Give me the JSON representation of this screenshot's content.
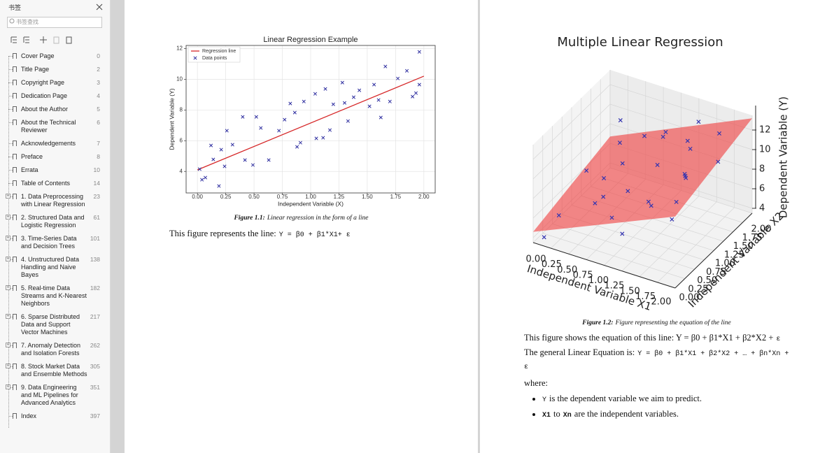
{
  "sidebar": {
    "title": "书签",
    "search_placeholder": "书签查找",
    "bookmarks": [
      {
        "label": "Cover Page",
        "page": 0
      },
      {
        "label": "Title Page",
        "page": 2
      },
      {
        "label": "Copyright Page",
        "page": 3
      },
      {
        "label": "Dedication Page",
        "page": 4
      },
      {
        "label": "About the Author",
        "page": 5
      },
      {
        "label": "About the Technical Reviewer",
        "page": 6
      },
      {
        "label": "Acknowledgements",
        "page": 7
      },
      {
        "label": "Preface",
        "page": 8
      },
      {
        "label": "Errata",
        "page": 10
      },
      {
        "label": "Table of Contents",
        "page": 14
      },
      {
        "label": "1. Data Preprocessing with Linear Regression",
        "page": 23,
        "has_children": true
      },
      {
        "label": "2. Structured Data and Logistic Regression",
        "page": 61,
        "has_children": true
      },
      {
        "label": "3. Time-Series Data and Decision Trees",
        "page": 101,
        "has_children": true
      },
      {
        "label": "4. Unstructured Data Handling and Naive Bayes",
        "page": 138,
        "has_children": true
      },
      {
        "label": "5. Real-time Data Streams and K-Nearest Neighbors",
        "page": 182,
        "has_children": true
      },
      {
        "label": "6. Sparse Distributed Data and Support Vector Machines",
        "page": 217,
        "has_children": true
      },
      {
        "label": "7. Anomaly Detection and Isolation Forests",
        "page": 262,
        "has_children": true
      },
      {
        "label": "8. Stock Market Data and Ensemble Methods",
        "page": 305,
        "has_children": true
      },
      {
        "label": "9. Data Engineering and ML Pipelines for Advanced Analytics",
        "page": 351,
        "has_children": true
      },
      {
        "label": "Index",
        "page": 397
      }
    ]
  },
  "pages": [
    {
      "caption": {
        "label": "Figure 1.1:",
        "text": "Linear regression in the form of a line"
      },
      "paragraphs": [
        {
          "text": "This figure represents the line:",
          "code": "Y = β0 + β1*X1+ ε"
        }
      ]
    },
    {
      "caption": {
        "label": "Figure 1.2:",
        "text": "Figure representing the equation of the line"
      },
      "paragraphs": [
        {
          "text": "This figure shows the equation of this line: Y = β0 + β1*X1 + β2*X2 +",
          "code": "ε"
        },
        {
          "text": "The general Linear Equation is:",
          "code": "Y = β0 + β1*X1 + β2*X2 + … + βn*Xn + ε"
        },
        {
          "text": "where:"
        }
      ],
      "bullets": [
        {
          "code": "Y",
          "text": "is the dependent variable we aim to predict."
        },
        {
          "code": "X1",
          "text": "to",
          "code2": "Xn",
          "text2": "are the independent variables."
        }
      ]
    }
  ],
  "chart_data": [
    {
      "type": "scatter",
      "title": "Linear Regression Example",
      "x_label": "Independent Variable (X)",
      "y_label": "Dependent Variable (Y)",
      "xlim": [
        -0.1,
        2.1
      ],
      "ylim": [
        2.6,
        12.2
      ],
      "xticks": [
        {
          "value": 0,
          "label": "0.00"
        },
        {
          "value": 0.25,
          "label": "0.25"
        },
        {
          "value": 0.5,
          "label": "0.50"
        },
        {
          "value": 0.75,
          "label": "0.75"
        },
        {
          "value": 1,
          "label": "1.00"
        },
        {
          "value": 1.25,
          "label": "1.25"
        },
        {
          "value": 1.5,
          "label": "1.50"
        },
        {
          "value": 1.75,
          "label": "1.75"
        },
        {
          "value": 2,
          "label": "2.00"
        }
      ],
      "yticks": [
        4,
        6,
        8,
        10,
        12
      ],
      "grid": true,
      "legend": "upper left",
      "series": [
        {
          "name": "Regression line",
          "kind": "line",
          "color": "#d62728",
          "x": [
            0,
            2
          ],
          "values": [
            4.1,
            10.2
          ]
        },
        {
          "name": "Data points",
          "kind": "points",
          "marker": "x",
          "color": "#2f2fa0",
          "x": [
            0.02,
            0.04,
            0.07,
            0.12,
            0.14,
            0.19,
            0.21,
            0.24,
            0.26,
            0.31,
            0.4,
            0.42,
            0.49,
            0.52,
            0.56,
            0.63,
            0.72,
            0.77,
            0.82,
            0.86,
            0.88,
            0.91,
            0.94,
            1.04,
            1.05,
            1.11,
            1.13,
            1.17,
            1.2,
            1.28,
            1.3,
            1.33,
            1.38,
            1.43,
            1.52,
            1.56,
            1.6,
            1.62,
            1.66,
            1.7,
            1.77,
            1.85,
            1.9,
            1.93,
            1.96,
            1.96
          ],
          "values": [
            4.15,
            3.46,
            3.6,
            5.69,
            4.78,
            3.05,
            5.42,
            4.33,
            6.65,
            5.74,
            7.55,
            4.74,
            4.42,
            7.55,
            6.83,
            4.74,
            6.65,
            7.37,
            8.42,
            7.83,
            5.6,
            5.87,
            8.55,
            9.05,
            6.15,
            6.19,
            9.37,
            6.69,
            8.37,
            9.78,
            8.46,
            7.28,
            8.83,
            9.28,
            8.24,
            9.65,
            8.65,
            7.51,
            10.83,
            8.55,
            10.05,
            10.55,
            8.87,
            9.1,
            11.78,
            9.65
          ]
        }
      ]
    },
    {
      "type": "scatter3d",
      "title": "Multiple Linear Regression",
      "x_label": "Independent Variable X1",
      "y_label": "Independent Variable X2",
      "z_label": "Dependent Variable (Y)",
      "xlim": [
        0,
        2
      ],
      "ylim": [
        0,
        2
      ],
      "zlim": [
        3.5,
        13.5
      ],
      "xticks": [
        {
          "value": 0,
          "label": "0.00"
        },
        {
          "value": 0.25,
          "label": "0.25"
        },
        {
          "value": 0.5,
          "label": "0.50"
        },
        {
          "value": 0.75,
          "label": "0.75"
        },
        {
          "value": 1,
          "label": "1.00"
        },
        {
          "value": 1.25,
          "label": "1.25"
        },
        {
          "value": 1.5,
          "label": "1.50"
        },
        {
          "value": 1.75,
          "label": "1.75"
        },
        {
          "value": 2,
          "label": "2.00"
        }
      ],
      "yticks": [
        {
          "value": 0,
          "label": "0.00"
        },
        {
          "value": 0.25,
          "label": "0.25"
        },
        {
          "value": 0.5,
          "label": "0.50"
        },
        {
          "value": 0.75,
          "label": "0.75"
        },
        {
          "value": 1,
          "label": "1.00"
        },
        {
          "value": 1.25,
          "label": "1.25"
        },
        {
          "value": 1.5,
          "label": "1.50"
        },
        {
          "value": 1.75,
          "label": "1.75"
        },
        {
          "value": 2,
          "label": "2.00"
        }
      ],
      "zticks": [
        4,
        6,
        8,
        10,
        12
      ],
      "grid": true,
      "surface": {
        "color": "#f03c3c",
        "x": [
          0,
          2,
          2,
          0
        ],
        "y": [
          0,
          0,
          2,
          2
        ],
        "z": [
          4.6,
          10.8,
          13.2,
          6.7
        ]
      },
      "series": [
        {
          "marker": "x",
          "color": "#3434b0",
          "x": [
            0.2,
            0.1,
            0.4,
            0.3,
            0.6,
            0.5,
            0.8,
            0.9,
            1.0,
            1.1,
            1.2,
            1.3,
            1.4,
            1.5,
            1.6,
            1.7,
            1.8,
            1.9,
            0.2,
            0.7,
            1.0,
            1.3,
            0.5,
            1.5,
            1.9,
            1.2,
            0.1,
            1.7
          ],
          "y": [
            0.3,
            0.1,
            1.1,
            1.7,
            0.5,
            1.4,
            1.9,
            0.8,
            0.2,
            1.2,
            1.8,
            0.6,
            1.5,
            0.3,
            1.0,
            1.7,
            0.4,
            1.3,
            1.9,
            1.6,
            1.6,
            1.9,
            0.9,
            1.2,
            0.1,
            0.1,
            1.2,
            0.8
          ],
          "z": [
            5.6,
            3.9,
            6.8,
            7.9,
            7.0,
            7.4,
            8.9,
            7.8,
            7.6,
            9.4,
            9.8,
            8.4,
            10.6,
            9.6,
            10.2,
            12.1,
            10.3,
            11.2,
            9.2,
            9.9,
            11.0,
            11.6,
            5.9,
            9.0,
            9.9,
            6.8,
            6.5,
            11.4
          ]
        }
      ]
    }
  ]
}
